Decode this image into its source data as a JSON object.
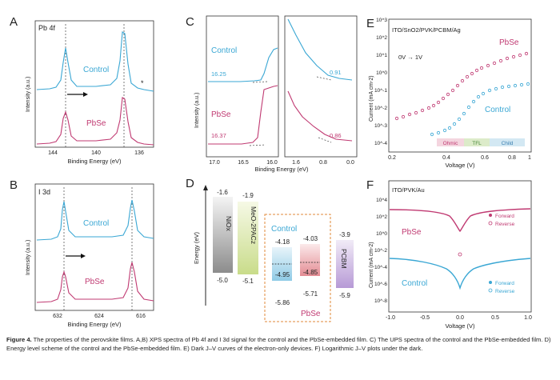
{
  "figure": {
    "panels": {
      "A": {
        "letter": "A",
        "tag": "Pb 4f",
        "xlabel": "Binding Energy (eV)",
        "ylabel": "Intensity (a.u.)",
        "ticks": [
          "144",
          "140",
          "136"
        ],
        "label_control": "Control",
        "label_pbse": "PbSe",
        "star": "*"
      },
      "B": {
        "letter": "B",
        "tag": "I 3d",
        "xlabel": "Binding Energy (eV)",
        "ylabel": "Intensity (a.u.)",
        "ticks": [
          "632",
          "624",
          "616"
        ],
        "label_control": "Control",
        "label_pbse": "PbSe"
      },
      "C": {
        "letter": "C",
        "xlabel": "Binding Energy (eV)",
        "ylabel": "Intensity (a.u.)",
        "ticks_left": [
          "17.0",
          "16.5",
          "16.0"
        ],
        "ticks_right": [
          "1.6",
          "0.8",
          "0.0"
        ],
        "label_control": "Control",
        "label_pbse": "PbSe",
        "val_control_left": "16.25",
        "val_control_right": "0.91",
        "val_pbse_left": "16.37",
        "val_pbse_right": "0.86"
      },
      "D": {
        "letter": "D",
        "ylabel": "Energy (eV)",
        "nio": {
          "name": "NiOx",
          "top": "-1.6",
          "bottom": "-5.0"
        },
        "meo": {
          "name": "MeO-2PACz",
          "top": "-1.9",
          "bottom": "-5.1"
        },
        "control": {
          "name": "Control",
          "top": "-4.18",
          "mid": "-4.95",
          "bottom": "-5.86"
        },
        "pbse": {
          "name": "PbSe",
          "top": "-4.03",
          "mid": "-4.85",
          "bottom": "-5.71"
        },
        "pcbm": {
          "name": "PCBM",
          "top": "-3.9",
          "bottom": "-5.9"
        }
      },
      "E": {
        "letter": "E",
        "title": "ITO/SnO2/PVK/PCBM/Ag",
        "sweep": "0V → 1V",
        "xlabel": "Voltage (V)",
        "ylabel": "Current (mA cm-2)",
        "xticks": [
          "0.2",
          "0.4",
          "0.6",
          "0.8",
          "1"
        ],
        "yticks": [
          "10^3",
          "10^2",
          "10^1",
          "10^0",
          "10^-1",
          "10^-2",
          "10^-3",
          "10^-4"
        ],
        "label_pbse": "PbSe",
        "label_control": "Control",
        "regions": [
          "Ohmic",
          "TFL",
          "Child"
        ]
      },
      "F": {
        "letter": "F",
        "title": "ITO/PVK/Au",
        "xlabel": "Voltage (V)",
        "ylabel": "Current (mA cm-2)",
        "xticks": [
          "-1.0",
          "-0.5",
          "0.0",
          "0.5",
          "1.0"
        ],
        "yticks": [
          "10^4",
          "10^2",
          "10^0",
          "10^-2",
          "10^-4",
          "10^-6",
          "10^-8"
        ],
        "label_pbse": "PbSe",
        "label_control": "Control",
        "legend_forward": "Forward",
        "legend_reverse": "Reverse"
      }
    },
    "colors": {
      "control": "#3aa7d4",
      "pbse": "#c03a72",
      "dashed_box": "#e08a3a"
    }
  },
  "caption": {
    "label": "Figure 4.",
    "text": "The properties of the perovskite films. A,B) XPS spectra of Pb 4f and I 3d signal for the control and the PbSe-embedded film. C) The UPS spectra of the control and the PbSe-embedded film. D) Energy level scheme of the control and the PbSe-embedded film. E) Dark J–V curves of the electron-only devices. F) Logarithmic J–V plots under the dark."
  }
}
